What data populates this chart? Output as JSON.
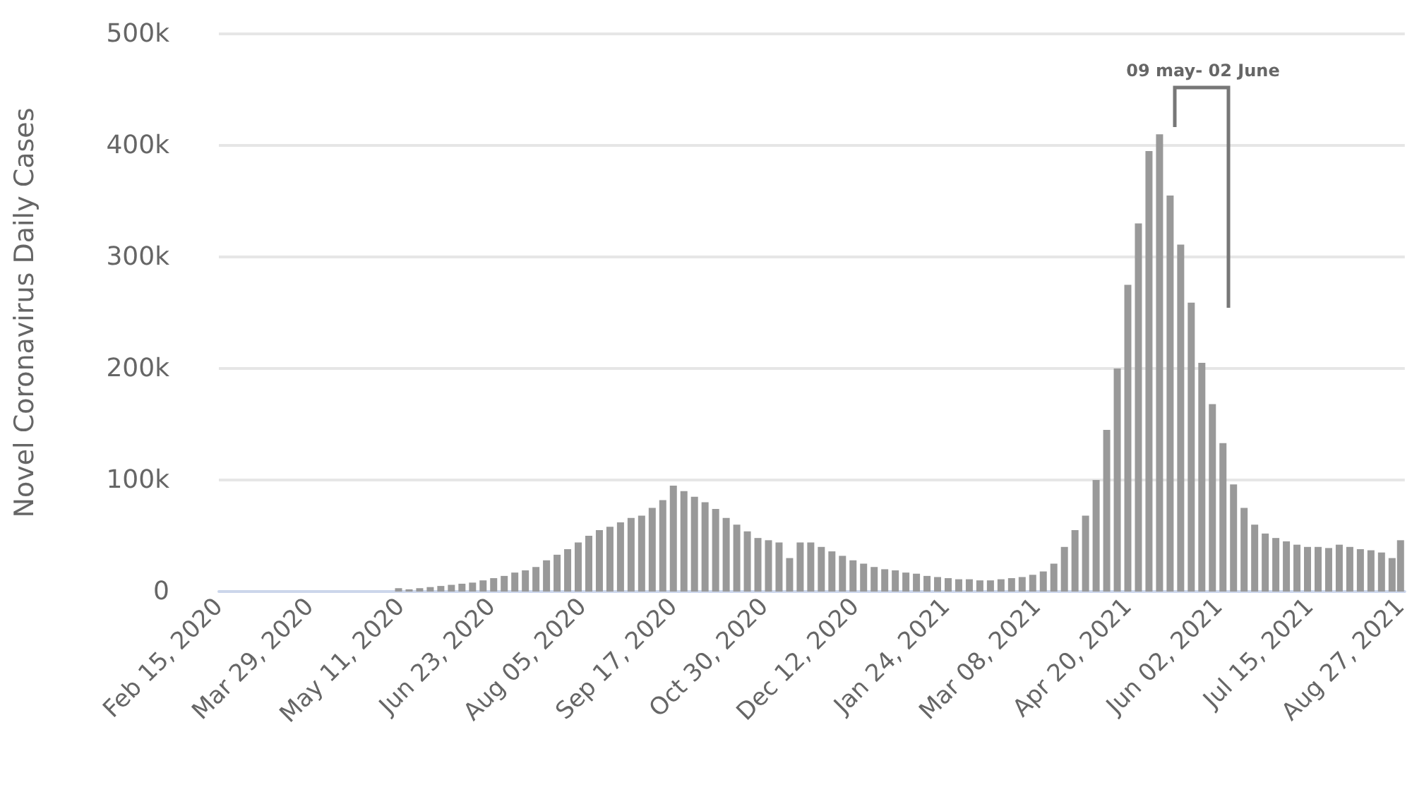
{
  "chart_data": {
    "type": "bar",
    "ylabel": "Novel Coronavirus Daily Cases",
    "x": [
      "2020-02-15",
      "2020-02-20",
      "2020-02-25",
      "2020-03-01",
      "2020-03-06",
      "2020-03-11",
      "2020-03-16",
      "2020-03-21",
      "2020-03-26",
      "2020-03-31",
      "2020-04-05",
      "2020-04-10",
      "2020-04-15",
      "2020-04-20",
      "2020-04-25",
      "2020-04-30",
      "2020-05-05",
      "2020-05-10",
      "2020-05-15",
      "2020-05-20",
      "2020-05-25",
      "2020-05-30",
      "2020-06-04",
      "2020-06-09",
      "2020-06-14",
      "2020-06-19",
      "2020-06-24",
      "2020-06-29",
      "2020-07-04",
      "2020-07-09",
      "2020-07-14",
      "2020-07-19",
      "2020-07-24",
      "2020-07-29",
      "2020-08-03",
      "2020-08-08",
      "2020-08-13",
      "2020-08-18",
      "2020-08-23",
      "2020-08-28",
      "2020-09-02",
      "2020-09-07",
      "2020-09-12",
      "2020-09-17",
      "2020-09-22",
      "2020-09-27",
      "2020-10-02",
      "2020-10-07",
      "2020-10-12",
      "2020-10-17",
      "2020-10-22",
      "2020-10-27",
      "2020-11-01",
      "2020-11-06",
      "2020-11-11",
      "2020-11-16",
      "2020-11-21",
      "2020-11-26",
      "2020-12-01",
      "2020-12-06",
      "2020-12-11",
      "2020-12-16",
      "2020-12-21",
      "2020-12-26",
      "2020-12-31",
      "2021-01-05",
      "2021-01-10",
      "2021-01-15",
      "2021-01-20",
      "2021-01-25",
      "2021-01-30",
      "2021-02-04",
      "2021-02-09",
      "2021-02-14",
      "2021-02-19",
      "2021-02-24",
      "2021-03-01",
      "2021-03-06",
      "2021-03-11",
      "2021-03-16",
      "2021-03-21",
      "2021-03-26",
      "2021-03-31",
      "2021-04-05",
      "2021-04-10",
      "2021-04-15",
      "2021-04-20",
      "2021-04-25",
      "2021-04-30",
      "2021-05-05",
      "2021-05-10",
      "2021-05-15",
      "2021-05-20",
      "2021-05-25",
      "2021-05-30",
      "2021-06-04",
      "2021-06-09",
      "2021-06-14",
      "2021-06-19",
      "2021-06-24",
      "2021-06-29",
      "2021-07-04",
      "2021-07-09",
      "2021-07-14",
      "2021-07-19",
      "2021-07-24",
      "2021-07-29",
      "2021-08-03",
      "2021-08-08",
      "2021-08-13",
      "2021-08-18",
      "2021-08-23",
      "2021-08-27"
    ],
    "values": [
      0,
      0,
      0,
      0,
      0,
      0,
      0,
      0,
      0,
      0,
      0,
      0,
      0,
      0,
      0,
      0,
      0,
      3000,
      2000,
      3000,
      4000,
      5000,
      6000,
      7000,
      8000,
      10000,
      12000,
      14000,
      17000,
      19000,
      22000,
      28000,
      33000,
      38000,
      44000,
      50000,
      55000,
      58000,
      62000,
      66000,
      68000,
      75000,
      82000,
      95000,
      90000,
      85000,
      80000,
      74000,
      66000,
      60000,
      54000,
      48000,
      46000,
      44000,
      30000,
      44000,
      44000,
      40000,
      36000,
      32000,
      28000,
      25000,
      22000,
      20000,
      19000,
      17000,
      16000,
      14000,
      13000,
      12000,
      11000,
      11000,
      10000,
      10000,
      11000,
      12000,
      13000,
      15000,
      18000,
      25000,
      40000,
      55000,
      68000,
      100000,
      145000,
      200000,
      275000,
      330000,
      395000,
      410000,
      355000,
      311000,
      259000,
      205000,
      168000,
      133000,
      96000,
      75000,
      60000,
      52000,
      48000,
      45000,
      42000,
      40000,
      40000,
      39000,
      42000,
      40000,
      38000,
      37000,
      35000,
      30000,
      46000
    ],
    "color": "#999999",
    "xlim": [
      "2020-02-15",
      "2021-08-29"
    ],
    "xticks": [
      {
        "value": "2020-02-15",
        "label": "Feb 15, 2020"
      },
      {
        "value": "2020-03-29",
        "label": "Mar 29, 2020"
      },
      {
        "value": "2020-05-11",
        "label": "May 11, 2020"
      },
      {
        "value": "2020-06-23",
        "label": "Jun 23, 2020"
      },
      {
        "value": "2020-08-05",
        "label": "Aug 05, 2020"
      },
      {
        "value": "2020-09-17",
        "label": "Sep 17, 2020"
      },
      {
        "value": "2020-10-30",
        "label": "Oct 30, 2020"
      },
      {
        "value": "2020-12-12",
        "label": "Dec 12, 2020"
      },
      {
        "value": "2021-01-24",
        "label": "Jan 24, 2021"
      },
      {
        "value": "2021-03-08",
        "label": "Mar 08, 2021"
      },
      {
        "value": "2021-04-20",
        "label": "Apr 20, 2021"
      },
      {
        "value": "2021-06-02",
        "label": "Jun 02, 2021"
      },
      {
        "value": "2021-07-15",
        "label": "Jul 15, 2021"
      },
      {
        "value": "2021-08-27",
        "label": "Aug 27, 2021"
      }
    ],
    "ylim": [
      0,
      500000
    ],
    "yticks": [
      0,
      {
        "value": 100000,
        "label": "100k"
      },
      {
        "value": 200000,
        "label": "200k"
      },
      {
        "value": 300000,
        "label": "300k"
      },
      {
        "value": 400000,
        "label": "400k"
      },
      {
        "value": 500000,
        "label": "500k"
      }
    ],
    "grid": "y",
    "annotations": [
      "09 may- 02 June"
    ]
  }
}
